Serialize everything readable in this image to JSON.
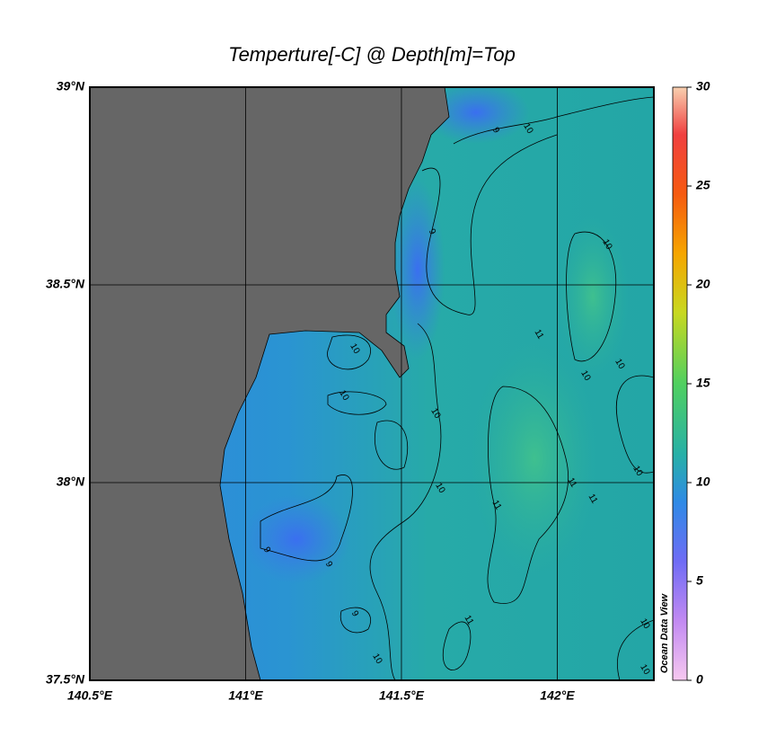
{
  "map": {
    "title": "Temperture[-C] @ Depth[m]=Top",
    "xlim": [
      140.5,
      142.31
    ],
    "ylim": [
      37.5,
      39
    ],
    "xticks": [
      {
        "value": 140.5,
        "label": "140.5°E"
      },
      {
        "value": 141,
        "label": "141°E"
      },
      {
        "value": 141.5,
        "label": "141.5°E"
      },
      {
        "value": 142,
        "label": "142°E"
      }
    ],
    "yticks": [
      {
        "value": 37.5,
        "label": "37.5°N"
      },
      {
        "value": 38,
        "label": "38°N"
      },
      {
        "value": 38.5,
        "label": "38.5°N"
      },
      {
        "value": 39,
        "label": "39°N"
      }
    ],
    "colorbar": {
      "lim": [
        0,
        30
      ],
      "ticks": [
        0,
        5,
        10,
        15,
        20,
        25,
        30
      ]
    },
    "contour_labels": [
      10,
      9,
      9,
      10,
      11,
      10,
      10,
      10,
      10,
      10,
      10,
      11,
      11,
      11,
      10,
      9,
      9,
      9,
      10,
      11,
      10,
      10
    ],
    "watermark": "Ocean Data View"
  }
}
